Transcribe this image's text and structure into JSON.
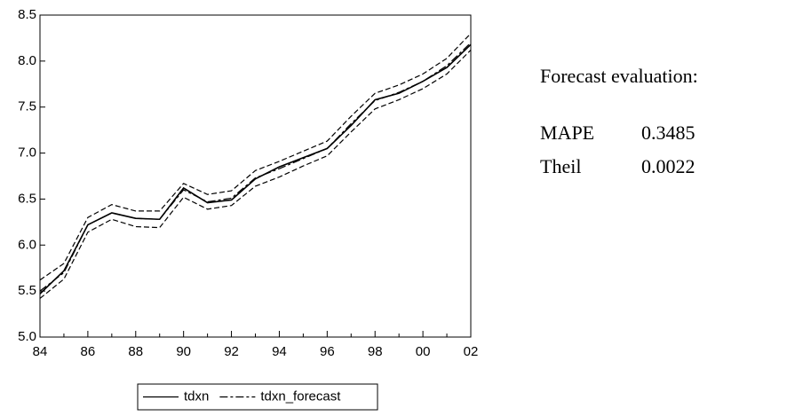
{
  "chart_data": {
    "type": "line",
    "categories": [
      "84",
      null,
      "86",
      null,
      "88",
      null,
      "90",
      null,
      "92",
      null,
      "94",
      null,
      "96",
      null,
      "98",
      null,
      "00",
      null,
      "02"
    ],
    "series": [
      {
        "name": "tdxn",
        "color": "#000000",
        "dash": "none",
        "values": [
          5.47,
          5.72,
          6.22,
          6.35,
          6.29,
          6.28,
          6.62,
          6.46,
          6.49,
          6.72,
          6.85,
          6.95,
          7.05,
          7.3,
          7.58,
          7.65,
          7.78,
          7.93,
          8.18
        ]
      },
      {
        "name": "tdxn_forecast",
        "color": "#000000",
        "dash": "9,3,3,3",
        "values": [
          5.5,
          5.7,
          6.22,
          6.35,
          6.29,
          6.28,
          6.6,
          6.47,
          6.51,
          6.73,
          6.83,
          6.94,
          7.05,
          7.32,
          7.57,
          7.66,
          7.78,
          7.95,
          8.2
        ]
      }
    ],
    "bands": {
      "color": "#000000",
      "dash": "6,3",
      "upper": [
        5.62,
        5.8,
        6.3,
        6.44,
        6.37,
        6.37,
        6.67,
        6.55,
        6.59,
        6.81,
        6.91,
        7.02,
        7.13,
        7.4,
        7.65,
        7.74,
        7.86,
        8.03,
        8.3
      ],
      "lower": [
        5.42,
        5.63,
        6.14,
        6.28,
        6.2,
        6.19,
        6.52,
        6.39,
        6.43,
        6.64,
        6.74,
        6.86,
        6.97,
        7.23,
        7.48,
        7.58,
        7.7,
        7.86,
        8.12
      ]
    },
    "ylim": [
      5.0,
      8.5
    ],
    "yticks": [
      {
        "value": 5,
        "label": "5.0"
      },
      5.5,
      {
        "value": 6,
        "label": "6.0"
      },
      6.5,
      {
        "value": 7,
        "label": "7.0"
      },
      7.5,
      {
        "value": 8,
        "label": "8.0"
      },
      8.5
    ],
    "legend": "bottom"
  },
  "evaluation": {
    "title": "Forecast evaluation:",
    "rows": [
      [
        "MAPE",
        0.3485
      ],
      [
        "Theil",
        0.0022
      ]
    ]
  }
}
